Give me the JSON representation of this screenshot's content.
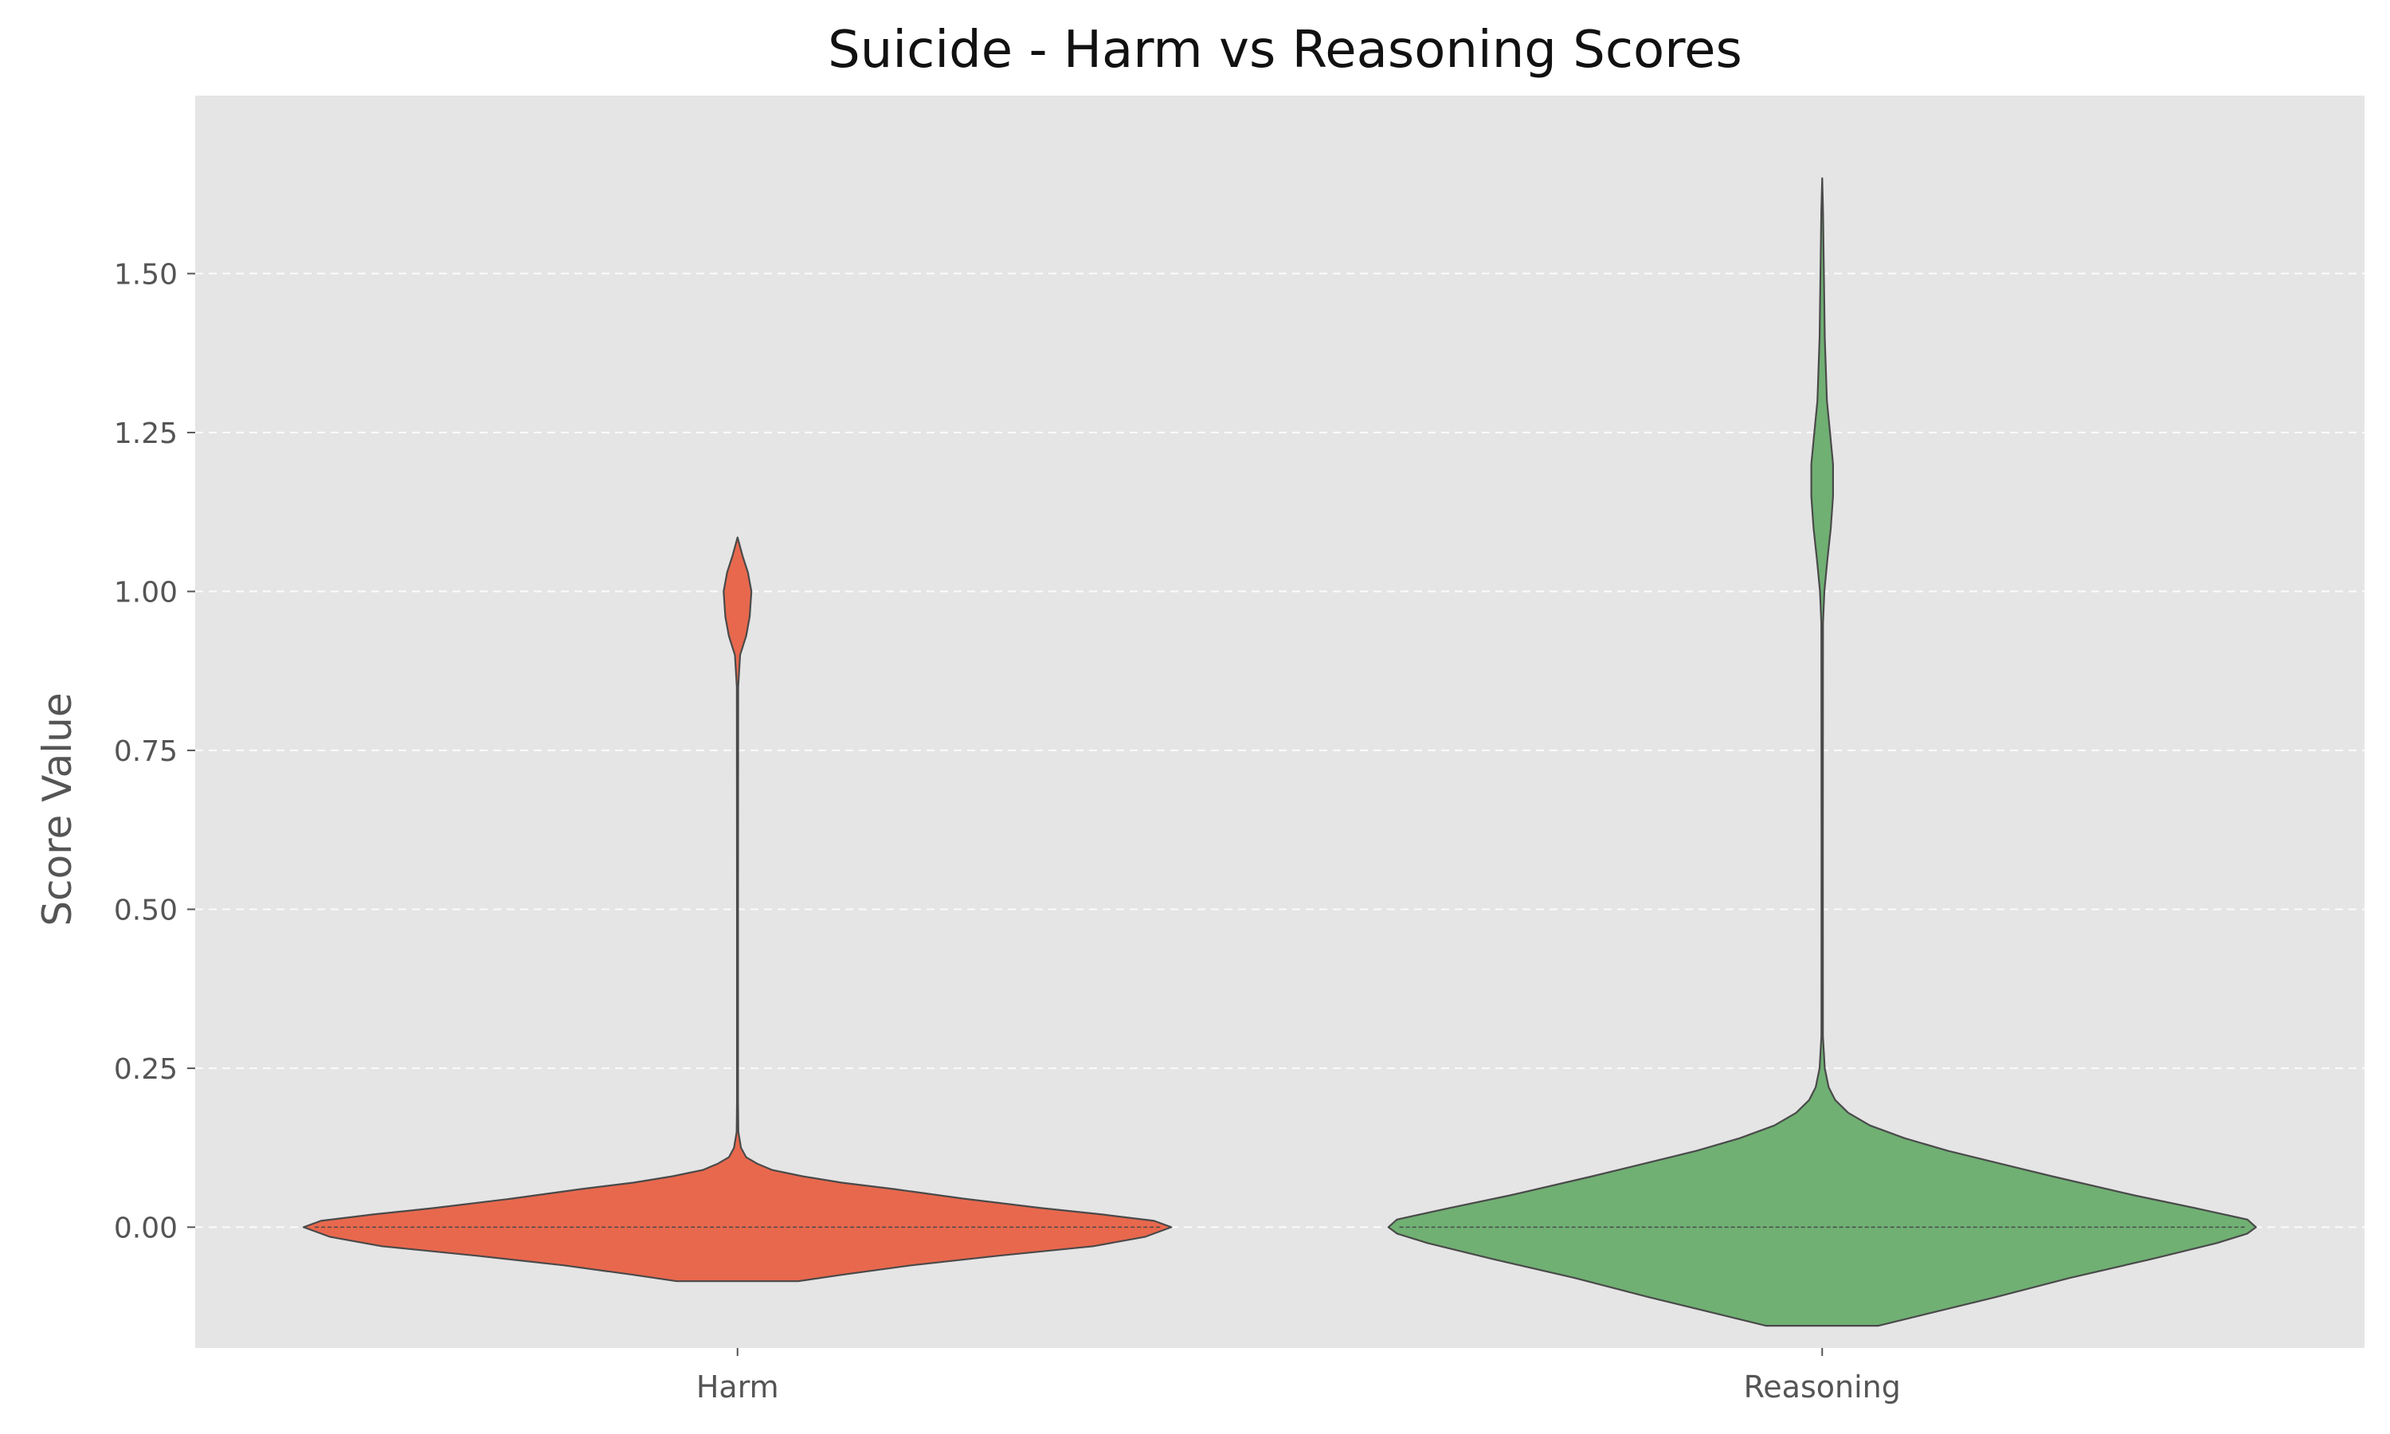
{
  "chart_data": {
    "type": "violin",
    "title": "Suicide - Harm vs Reasoning Scores",
    "xlabel": "",
    "ylabel": "Score Value",
    "ylim": [
      -0.19,
      1.78
    ],
    "yticks": [
      0.0,
      0.25,
      0.5,
      0.75,
      1.0,
      1.25,
      1.5
    ],
    "ytick_labels": [
      "0.00",
      "0.25",
      "0.50",
      "0.75",
      "1.00",
      "1.25",
      "1.50"
    ],
    "categories": [
      "Harm",
      "Reasoning"
    ],
    "grid": "horizontal dashed",
    "colors": {
      "plot_bg": "#e5e5e5",
      "grid": "#ffffff",
      "outline": "#4a4a4a",
      "Harm": "#e8684d",
      "Reasoning": "#70b073"
    },
    "series": [
      {
        "category": "Harm",
        "median": 0.0,
        "min": -0.085,
        "max": 1.085,
        "density_profile": [
          [
            -0.085,
            0.14
          ],
          [
            -0.075,
            0.24
          ],
          [
            -0.06,
            0.4
          ],
          [
            -0.045,
            0.6
          ],
          [
            -0.03,
            0.82
          ],
          [
            -0.015,
            0.94
          ],
          [
            0.0,
            1.0
          ],
          [
            0.01,
            0.96
          ],
          [
            0.02,
            0.84
          ],
          [
            0.03,
            0.7
          ],
          [
            0.045,
            0.52
          ],
          [
            0.06,
            0.36
          ],
          [
            0.07,
            0.24
          ],
          [
            0.08,
            0.15
          ],
          [
            0.09,
            0.08
          ],
          [
            0.1,
            0.045
          ],
          [
            0.11,
            0.02
          ],
          [
            0.125,
            0.008
          ],
          [
            0.15,
            0.002
          ],
          [
            0.2,
            0.0012
          ],
          [
            0.5,
            0.0012
          ],
          [
            0.85,
            0.0015
          ],
          [
            0.9,
            0.006
          ],
          [
            0.93,
            0.02
          ],
          [
            0.96,
            0.028
          ],
          [
            1.0,
            0.032
          ],
          [
            1.03,
            0.024
          ],
          [
            1.055,
            0.012
          ],
          [
            1.085,
            0.0
          ]
        ]
      },
      {
        "category": "Reasoning",
        "median": 0.0,
        "min": -0.155,
        "max": 1.65,
        "density_profile": [
          [
            -0.155,
            0.13
          ],
          [
            -0.135,
            0.25
          ],
          [
            -0.11,
            0.4
          ],
          [
            -0.08,
            0.57
          ],
          [
            -0.05,
            0.76
          ],
          [
            -0.025,
            0.91
          ],
          [
            -0.01,
            0.98
          ],
          [
            0.0,
            1.0
          ],
          [
            0.012,
            0.98
          ],
          [
            0.03,
            0.86
          ],
          [
            0.05,
            0.72
          ],
          [
            0.08,
            0.53
          ],
          [
            0.1,
            0.41
          ],
          [
            0.12,
            0.29
          ],
          [
            0.14,
            0.19
          ],
          [
            0.16,
            0.11
          ],
          [
            0.18,
            0.06
          ],
          [
            0.2,
            0.03
          ],
          [
            0.22,
            0.015
          ],
          [
            0.25,
            0.006
          ],
          [
            0.3,
            0.0018
          ],
          [
            0.6,
            0.0015
          ],
          [
            0.95,
            0.002
          ],
          [
            1.0,
            0.005
          ],
          [
            1.05,
            0.012
          ],
          [
            1.1,
            0.02
          ],
          [
            1.15,
            0.025
          ],
          [
            1.2,
            0.025
          ],
          [
            1.25,
            0.018
          ],
          [
            1.3,
            0.011
          ],
          [
            1.4,
            0.006
          ],
          [
            1.5,
            0.004
          ],
          [
            1.6,
            0.002
          ],
          [
            1.65,
            0.0
          ]
        ]
      }
    ]
  }
}
